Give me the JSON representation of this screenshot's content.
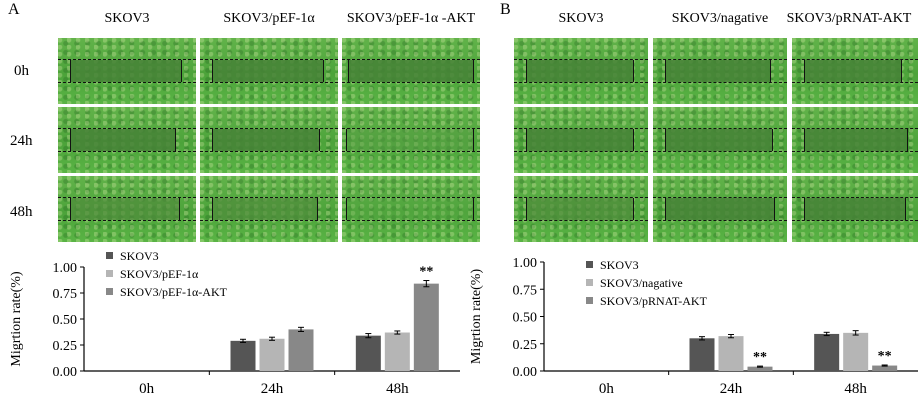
{
  "panels": [
    {
      "letter": "A",
      "columns": [
        "SKOV3",
        "SKOV3/pEF-1α",
        "SKOV3/pEF-1α -AKT"
      ],
      "rows": [
        "0h",
        "24h",
        "48h"
      ]
    },
    {
      "letter": "B",
      "columns": [
        "SKOV3",
        "SKOV3/nagative",
        "SKOV3/pRNAT-AKT"
      ],
      "rows": [
        "0h",
        "24h",
        "48h"
      ]
    }
  ],
  "chart_data": [
    {
      "type": "bar",
      "ylabel": "Migrtion rate(%)",
      "ylim": [
        0,
        1.0
      ],
      "yticks": [
        "0.00",
        "0.25",
        "0.50",
        "0.75",
        "1.00"
      ],
      "yticks_values": [
        0,
        0.25,
        0.5,
        0.75,
        1.0
      ],
      "categories": [
        "0h",
        "24h",
        "48h"
      ],
      "legend_position": "top-left",
      "series": [
        {
          "name": "SKOV3",
          "color": "#555555",
          "values": [
            0,
            0.29,
            0.34
          ],
          "errors": [
            0,
            0.015,
            0.02
          ]
        },
        {
          "name": "SKOV3/pEF-1α",
          "color": "#b5b5b5",
          "values": [
            0,
            0.31,
            0.37
          ],
          "errors": [
            0,
            0.015,
            0.015
          ]
        },
        {
          "name": "SKOV3/pEF-1α-AKT",
          "color": "#888888",
          "values": [
            0,
            0.4,
            0.84
          ],
          "errors": [
            0,
            0.02,
            0.03
          ]
        }
      ],
      "annotations": [
        {
          "category": "48h",
          "series": 2,
          "text": "**"
        }
      ]
    },
    {
      "type": "bar",
      "ylabel": "Migrtion rate(%)",
      "ylim": [
        0,
        1.0
      ],
      "yticks": [
        "0.00",
        "0.25",
        "0.50",
        "0.75",
        "1.00"
      ],
      "yticks_values": [
        0,
        0.25,
        0.5,
        0.75,
        1.0
      ],
      "categories": [
        "0h",
        "24h",
        "48h"
      ],
      "legend_position": "top-left",
      "series": [
        {
          "name": "SKOV3",
          "color": "#555555",
          "values": [
            0,
            0.3,
            0.34
          ],
          "errors": [
            0,
            0.015,
            0.015
          ]
        },
        {
          "name": "SKOV3/nagative",
          "color": "#b5b5b5",
          "values": [
            0,
            0.32,
            0.35
          ],
          "errors": [
            0,
            0.015,
            0.02
          ]
        },
        {
          "name": "SKOV3/pRNAT-AKT",
          "color": "#888888",
          "values": [
            0,
            0.04,
            0.05
          ],
          "errors": [
            0,
            0.005,
            0.005
          ]
        }
      ],
      "annotations": [
        {
          "category": "24h",
          "series": 2,
          "text": "**"
        },
        {
          "category": "48h",
          "series": 2,
          "text": "**"
        }
      ]
    }
  ]
}
